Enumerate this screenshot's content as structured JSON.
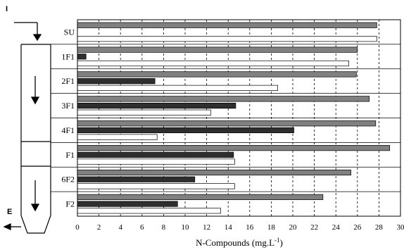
{
  "diagram": {
    "inlet_label": "I",
    "outlet_label": "E"
  },
  "chart_data": {
    "type": "bar",
    "orientation": "horizontal",
    "categories": [
      "SU",
      "1F1",
      "2F1",
      "3F1",
      "4F1",
      "F1",
      "6F2",
      "F2"
    ],
    "series": [
      {
        "values": [
          27.8,
          26.0,
          25.9,
          27.1,
          27.7,
          29.0,
          25.4,
          22.8
        ]
      },
      {
        "values": [
          0,
          0.8,
          7.2,
          14.7,
          20.1,
          14.5,
          10.9,
          9.3
        ]
      },
      {
        "values": [
          27.8,
          25.2,
          18.6,
          12.4,
          7.4,
          14.6,
          14.6,
          13.3
        ]
      }
    ],
    "colors": [
      "#808080",
      "#2e2e2e",
      "#ffffff"
    ],
    "xlabel": "N-Compounds (mg.L",
    "xlabel_sup": "-1",
    "xlabel_close": ")",
    "xlim": [
      0,
      30
    ],
    "xticks": [
      "0",
      "2",
      "4",
      "6",
      "8",
      "10",
      "12",
      "14",
      "16",
      "18",
      "20",
      "22",
      "24",
      "26",
      "28",
      "30"
    ],
    "grid": "vertical-dashed"
  }
}
